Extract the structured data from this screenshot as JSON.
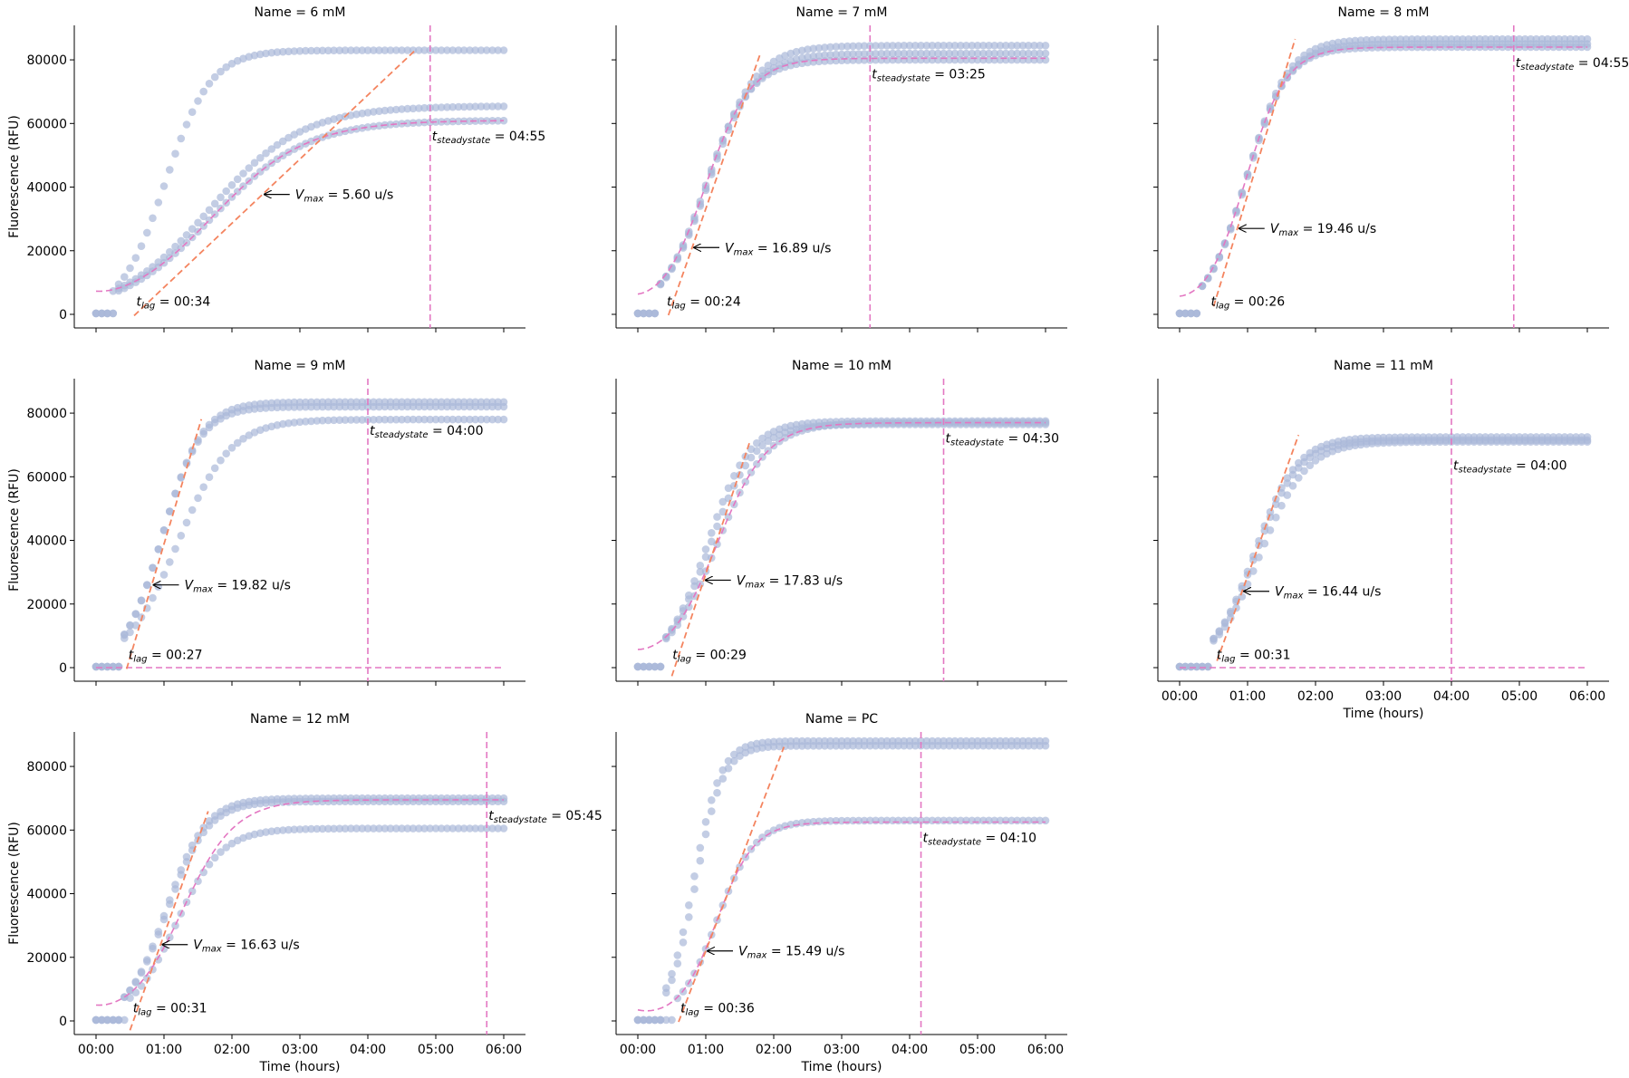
{
  "figure": {
    "ylabel": "Fluorescence (RFU)",
    "xlabel": "Time (hours)",
    "xtick_labels": [
      "00:00",
      "01:00",
      "02:00",
      "03:00",
      "04:00",
      "05:00",
      "06:00"
    ],
    "ytick_labels": [
      "0",
      "20000",
      "40000",
      "60000",
      "80000"
    ],
    "colors": {
      "points": "#a9b8d8",
      "fit": "#e377c2",
      "vmax": "#f4845f",
      "steady": "#e377c2"
    }
  },
  "chart_data": [
    {
      "type": "scatter",
      "title": "Name = 6 mM",
      "xlim": [
        0,
        6
      ],
      "ylim": [
        0,
        86000
      ],
      "replicates": [
        {
          "lag": 0.35,
          "vmax_h": 62000,
          "plateau": 83000
        },
        {
          "lag": 0.3,
          "vmax_h": 24000,
          "plateau": 65500
        },
        {
          "lag": 0.32,
          "vmax_h": 22000,
          "plateau": 61000
        }
      ],
      "vmax_point": [
        2.45,
        37700
      ],
      "vmax_slope": 20160,
      "vmax_range": [
        0.56,
        4.7
      ],
      "fit_plateau": 61000,
      "t_lag": 0.567,
      "t_steady": 4.917,
      "steady_draw": "vline",
      "vmax_text": "5.60 u/s",
      "lag_text": "00:34",
      "steady_text": "04:55",
      "ylabel_shown": true,
      "xlabel_shown": false
    },
    {
      "type": "scatter",
      "title": "Name = 7 mM",
      "xlim": [
        0,
        6
      ],
      "ylim": [
        0,
        86000
      ],
      "replicates": [
        {
          "lag": 0.35,
          "vmax_h": 61000,
          "plateau": 84500
        },
        {
          "lag": 0.35,
          "vmax_h": 60000,
          "plateau": 82000
        },
        {
          "lag": 0.33,
          "vmax_h": 60500,
          "plateau": 80000
        }
      ],
      "vmax_point": [
        0.8,
        21000
      ],
      "vmax_slope": 60800,
      "vmax_range": [
        0.45,
        1.8
      ],
      "fit_plateau": 80500,
      "t_lag": 0.4,
      "t_steady": 3.417,
      "steady_draw": "vline",
      "vmax_text": "16.89 u/s",
      "lag_text": "00:24",
      "steady_text": "03:25",
      "ylabel_shown": false,
      "xlabel_shown": false
    },
    {
      "type": "scatter",
      "title": "Name = 8 mM",
      "xlim": [
        0,
        6
      ],
      "ylim": [
        0,
        86000
      ],
      "replicates": [
        {
          "lag": 0.38,
          "vmax_h": 71000,
          "plateau": 86500
        },
        {
          "lag": 0.38,
          "vmax_h": 70000,
          "plateau": 85000
        },
        {
          "lag": 0.37,
          "vmax_h": 70000,
          "plateau": 84000
        }
      ],
      "vmax_point": [
        0.85,
        27000
      ],
      "vmax_slope": 70060,
      "vmax_range": [
        0.5,
        1.7
      ],
      "fit_plateau": 84000,
      "t_lag": 0.433,
      "t_steady": 4.917,
      "steady_draw": "vline",
      "vmax_text": "19.46 u/s",
      "lag_text": "00:26",
      "steady_text": "04:55",
      "ylabel_shown": false,
      "xlabel_shown": false
    },
    {
      "type": "scatter",
      "title": "Name = 9 mM",
      "xlim": [
        0,
        6
      ],
      "ylim": [
        0,
        86000
      ],
      "replicates": [
        {
          "lag": 0.4,
          "vmax_h": 72000,
          "plateau": 83500
        },
        {
          "lag": 0.4,
          "vmax_h": 72000,
          "plateau": 82000
        },
        {
          "lag": 0.42,
          "vmax_h": 50000,
          "plateau": 78000
        }
      ],
      "vmax_point": [
        0.82,
        26000
      ],
      "vmax_slope": 71350,
      "vmax_range": [
        0.45,
        1.55
      ],
      "fit_plateau": 0,
      "t_lag": 0.45,
      "t_steady": 4.0,
      "steady_draw": "vline",
      "vmax_text": "19.82 u/s",
      "lag_text": "00:27",
      "steady_text": "04:00",
      "ylabel_shown": true,
      "xlabel_shown": false
    },
    {
      "type": "scatter",
      "title": "Name = 10 mM",
      "xlim": [
        0,
        6
      ],
      "ylim": [
        0,
        86000
      ],
      "replicates": [
        {
          "lag": 0.4,
          "vmax_h": 62000,
          "plateau": 77500
        },
        {
          "lag": 0.4,
          "vmax_h": 58000,
          "plateau": 76500
        },
        {
          "lag": 0.42,
          "vmax_h": 52000,
          "plateau": 77000
        }
      ],
      "vmax_point": [
        0.97,
        27500
      ],
      "vmax_slope": 64190,
      "vmax_range": [
        0.5,
        1.65
      ],
      "fit_plateau": 77000,
      "t_lag": 0.483,
      "t_steady": 4.5,
      "steady_draw": "vline",
      "vmax_text": "17.83 u/s",
      "lag_text": "00:29",
      "steady_text": "04:30",
      "ylabel_shown": false,
      "xlabel_shown": false
    },
    {
      "type": "scatter",
      "title": "Name = 11 mM",
      "xlim": [
        0,
        6
      ],
      "ylim": [
        0,
        86000
      ],
      "replicates": [
        {
          "lag": 0.48,
          "vmax_h": 58000,
          "plateau": 72500
        },
        {
          "lag": 0.48,
          "vmax_h": 56000,
          "plateau": 71500
        },
        {
          "lag": 0.5,
          "vmax_h": 52000,
          "plateau": 71000
        }
      ],
      "vmax_point": [
        0.92,
        24000
      ],
      "vmax_slope": 59180,
      "vmax_range": [
        0.55,
        1.75
      ],
      "fit_plateau": 0,
      "t_lag": 0.517,
      "t_steady": 4.0,
      "steady_draw": "vline",
      "vmax_text": "16.44 u/s",
      "lag_text": "00:31",
      "steady_text": "04:00",
      "ylabel_shown": false,
      "xlabel_shown": true
    },
    {
      "type": "scatter",
      "title": "Name = 12 mM",
      "xlim": [
        0,
        6
      ],
      "ylim": [
        0,
        86000
      ],
      "replicates": [
        {
          "lag": 0.45,
          "vmax_h": 60000,
          "plateau": 70000
        },
        {
          "lag": 0.45,
          "vmax_h": 58000,
          "plateau": 69000
        },
        {
          "lag": 0.5,
          "vmax_h": 45000,
          "plateau": 60500
        }
      ],
      "vmax_point": [
        0.95,
        24000
      ],
      "vmax_slope": 59870,
      "vmax_range": [
        0.5,
        1.65
      ],
      "fit_plateau": 69500,
      "t_lag": 0.517,
      "t_steady": 5.75,
      "steady_draw": "vline",
      "vmax_text": "16.63 u/s",
      "lag_text": "00:31",
      "steady_text": "05:45",
      "ylabel_shown": true,
      "xlabel_shown": true
    },
    {
      "type": "scatter",
      "title": "Name = PC",
      "xlim": [
        0,
        6
      ],
      "ylim": [
        0,
        86000
      ],
      "replicates": [
        {
          "lag": 0.42,
          "vmax_h": 110000,
          "plateau": 88000
        },
        {
          "lag": 0.45,
          "vmax_h": 108000,
          "plateau": 86500
        },
        {
          "lag": 0.6,
          "vmax_h": 56000,
          "plateau": 63000
        }
      ],
      "vmax_point": [
        1.0,
        22000
      ],
      "vmax_slope": 55760,
      "vmax_range": [
        0.6,
        2.15
      ],
      "fit_plateau": 62500,
      "t_lag": 0.6,
      "t_steady": 4.167,
      "steady_draw": "vline",
      "vmax_text": "15.49 u/s",
      "lag_text": "00:36",
      "steady_text": "04:10",
      "ylabel_shown": false,
      "xlabel_shown": true
    }
  ]
}
